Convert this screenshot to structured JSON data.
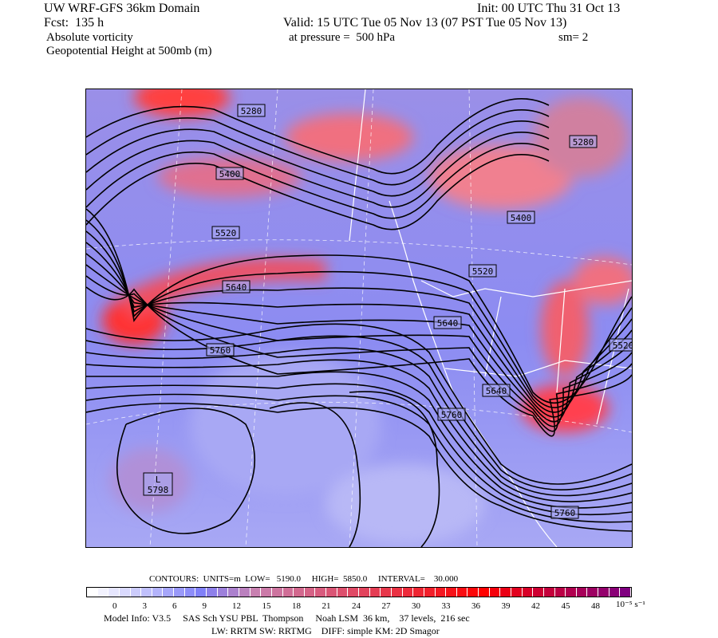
{
  "header": {
    "title": "UW WRF-GFS 36km Domain",
    "init": "Init: 00 UTC Thu 31 Oct 13",
    "forecast": "Fcst:  135 h",
    "valid": "Valid: 15 UTC Tue 05 Nov 13 (07 PST Tue 05 Nov 13)",
    "field": "Absolute vorticity",
    "pressure": "at pressure =  500 hPa",
    "smoothing": "sm= 2",
    "contour_field": "Geopotential Height at 500mb (m)"
  },
  "map": {
    "contour_labels": [
      "5280",
      "5280",
      "5400",
      "5400",
      "5520",
      "5520",
      "5520",
      "5640",
      "5640",
      "5640",
      "5760",
      "5760",
      "5760"
    ],
    "low_marker": {
      "symbol": "L",
      "value": "5798"
    }
  },
  "footer": {
    "contours": "CONTOURS:  UNITS=m  LOW=   5190.0     HIGH=  5850.0     INTERVAL=    30.000",
    "colorbar_ticks": [
      "0",
      "3",
      "6",
      "9",
      "12",
      "15",
      "18",
      "21",
      "24",
      "27",
      "30",
      "33",
      "36",
      "39",
      "42",
      "45",
      "48"
    ],
    "colorbar_units": "10⁻⁵ s⁻¹",
    "model_info": "Model Info: V3.5     SAS Sch YSU PBL  Thompson     Noah LSM  36 km,    37 levels,  216 sec",
    "physics": "LW: RRTM SW: RRTMG    DIFF: simple KM: 2D Smagor"
  },
  "colors": {
    "low": "#ffffff",
    "blue": "#8080f8",
    "pink": "#c080b0",
    "red": "#ff1010",
    "purple": "#800080"
  }
}
